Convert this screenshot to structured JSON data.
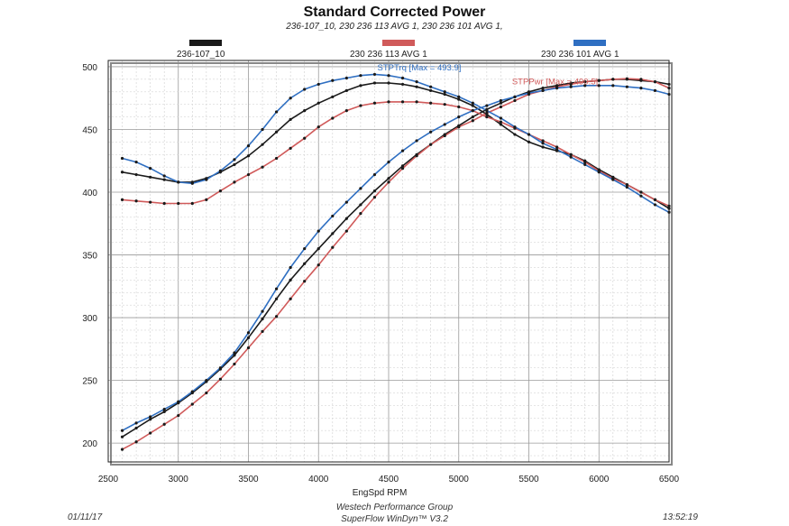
{
  "chart_data": {
    "type": "line",
    "title": "Standard Corrected Power",
    "subtitle": "236-107_10, 230 236 113 AVG  1, 230 236 101 AVG  1,",
    "xlabel": "EngSpd RPM",
    "ylabel": "",
    "xlim": [
      2500,
      6500
    ],
    "ylim": [
      185,
      505
    ],
    "xticks": [
      2500,
      3000,
      3500,
      4000,
      4500,
      5000,
      5500,
      6000,
      6500
    ],
    "yticks": [
      200,
      250,
      300,
      350,
      400,
      450,
      500
    ],
    "grid": true,
    "x": [
      2600,
      2700,
      2800,
      2900,
      3000,
      3100,
      3200,
      3300,
      3400,
      3500,
      3600,
      3700,
      3800,
      3900,
      4000,
      4100,
      4200,
      4300,
      4400,
      4500,
      4600,
      4700,
      4800,
      4900,
      5000,
      5100,
      5200,
      5300,
      5400,
      5500,
      5600,
      5700,
      5800,
      5900,
      6000,
      6100,
      6200,
      6300,
      6400,
      6500
    ],
    "series": [
      {
        "name": "236-107_10",
        "color": "#1a1a1a",
        "torque": [
          416,
          414,
          412,
          410,
          408,
          408,
          411,
          416,
          422,
          429,
          438,
          448,
          458,
          465,
          471,
          476,
          481,
          485,
          487,
          487,
          486,
          484,
          481,
          478,
          474,
          469,
          462,
          454,
          446,
          440,
          436,
          433,
          430,
          425,
          418,
          412,
          406,
          400,
          394,
          387
        ],
        "power": [
          205,
          212,
          219,
          225,
          232,
          240,
          249,
          259,
          270,
          284,
          299,
          315,
          330,
          343,
          355,
          367,
          379,
          390,
          401,
          411,
          421,
          430,
          438,
          446,
          453,
          460,
          466,
          471,
          476,
          480,
          483,
          485,
          487,
          488,
          489,
          490,
          490,
          489,
          488,
          486
        ]
      },
      {
        "name": "230 236 113 AVG  1",
        "color": "#d05a5a",
        "torque": [
          394,
          393,
          392,
          391,
          391,
          391,
          394,
          401,
          408,
          414,
          420,
          427,
          435,
          443,
          452,
          459,
          465,
          469,
          471,
          472,
          472,
          472,
          471,
          470,
          468,
          465,
          460,
          456,
          451,
          446,
          441,
          436,
          430,
          424,
          417,
          411,
          406,
          400,
          394,
          389
        ],
        "power": [
          195,
          201,
          208,
          215,
          222,
          231,
          240,
          251,
          263,
          276,
          289,
          301,
          315,
          329,
          342,
          356,
          369,
          383,
          396,
          408,
          419,
          429,
          438,
          445,
          452,
          457,
          463,
          468,
          473,
          478,
          481,
          484,
          486,
          488,
          489,
          490,
          490.5,
          490,
          488,
          483
        ]
      },
      {
        "name": "230 236 101 AVG  1",
        "color": "#2f6fc2",
        "torque": [
          427,
          424,
          419,
          413,
          408,
          407,
          410,
          417,
          426,
          437,
          450,
          464,
          475,
          482,
          486,
          489,
          491,
          493,
          493.9,
          493,
          491,
          488,
          484,
          480,
          476,
          471,
          465,
          459,
          452,
          446,
          439,
          434,
          428,
          422,
          416,
          410,
          404,
          397,
          390,
          384
        ],
        "power": [
          210,
          216,
          221,
          227,
          233,
          241,
          250,
          260,
          272,
          288,
          305,
          323,
          340,
          355,
          369,
          381,
          392,
          403,
          414,
          424,
          433,
          441,
          448,
          454,
          460,
          465,
          469,
          473,
          476,
          479,
          481,
          483,
          484,
          485,
          485,
          485,
          484,
          483,
          481,
          478
        ]
      }
    ],
    "annotations": [
      {
        "text": "STPTrq [Max = 493.9]",
        "color": "#2f6fc2",
        "x": 4420,
        "y": 497
      },
      {
        "text": "STPPwr [Max = 490.5]",
        "color": "#d05a5a",
        "x": 5380,
        "y": 486
      }
    ]
  },
  "legend": [
    {
      "label": "236-107_10",
      "color": "#1a1a1a"
    },
    {
      "label": "230 236 113 AVG  1",
      "color": "#d05a5a"
    },
    {
      "label": "230 236 101 AVG  1",
      "color": "#2f6fc2"
    }
  ],
  "footer": {
    "date": "01/11/17",
    "company": "Westech Performance Group",
    "software": "SuperFlow WinDyn™ V3.2",
    "time": "13:52:19"
  }
}
